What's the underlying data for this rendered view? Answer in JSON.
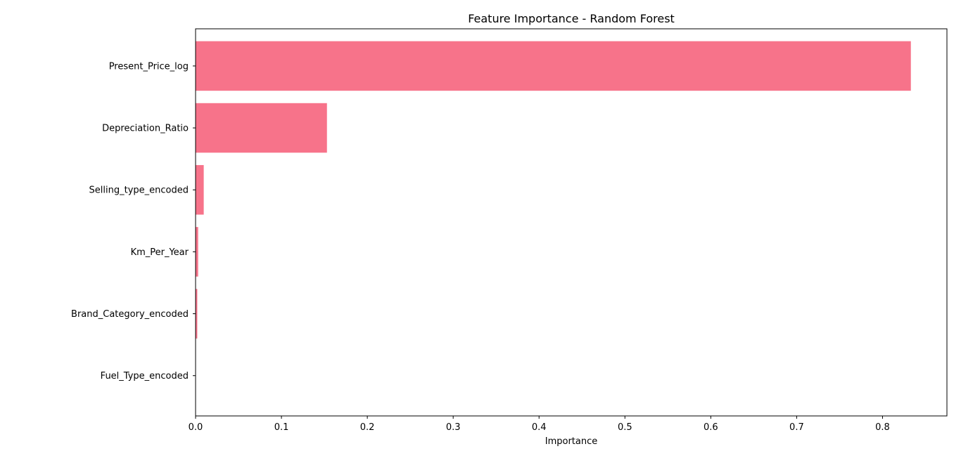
{
  "chart_data": {
    "type": "bar",
    "orientation": "horizontal",
    "title": "Feature Importance - Random Forest",
    "xlabel": "Importance",
    "ylabel": "",
    "categories": [
      "Present_Price_log",
      "Depreciation_Ratio",
      "Selling_type_encoded",
      "Km_Per_Year",
      "Brand_Category_encoded",
      "Fuel_Type_encoded"
    ],
    "values": [
      0.833,
      0.153,
      0.0095,
      0.003,
      0.002,
      0.0002
    ],
    "xlim": [
      0.0,
      0.875
    ],
    "xticks": [
      0.0,
      0.1,
      0.2,
      0.3,
      0.4,
      0.5,
      0.6,
      0.7,
      0.8
    ],
    "xtick_labels": [
      "0.0",
      "0.1",
      "0.2",
      "0.3",
      "0.4",
      "0.5",
      "0.6",
      "0.7",
      "0.8"
    ],
    "grid": false,
    "legend": "none",
    "bar_color": "#f7738a"
  }
}
